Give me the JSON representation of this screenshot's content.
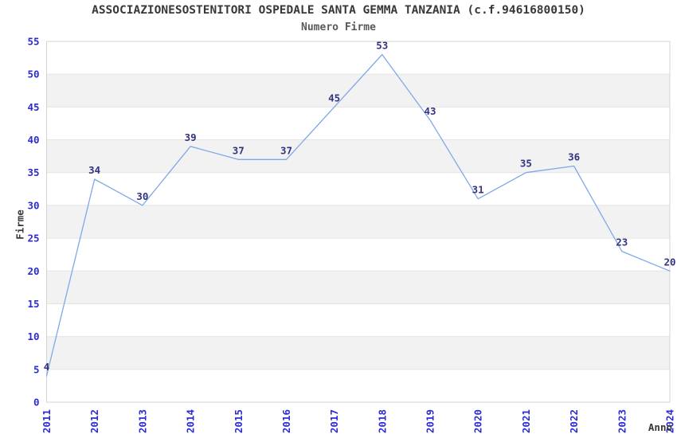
{
  "chart_data": {
    "type": "line",
    "title": "ASSOCIAZIONESOSTENITORI OSPEDALE SANTA GEMMA TANZANIA (c.f.94616800150)",
    "subtitle": "Numero Firme",
    "xlabel": "Anno",
    "ylabel": "Firme",
    "categories": [
      "2011",
      "2012",
      "2013",
      "2014",
      "2015",
      "2016",
      "2017",
      "2018",
      "2019",
      "2020",
      "2021",
      "2022",
      "2023",
      "2024"
    ],
    "values": [
      4,
      34,
      30,
      39,
      37,
      37,
      45,
      53,
      43,
      31,
      35,
      36,
      23,
      20
    ],
    "ylim": [
      0,
      55
    ],
    "ytick_step": 5,
    "grid": "horizontal-lines-with-alternating-bands",
    "legend": "none",
    "colors": {
      "line": "#7fa8e8",
      "point_label": "#333380",
      "tick_label": "#2b2bd4",
      "band": "#f2f2f2",
      "grid_line": "#e4e4e4",
      "plot_border": "#d4d4d4",
      "title": "#383838",
      "subtitle": "#595959",
      "axis_label": "#383838"
    }
  }
}
